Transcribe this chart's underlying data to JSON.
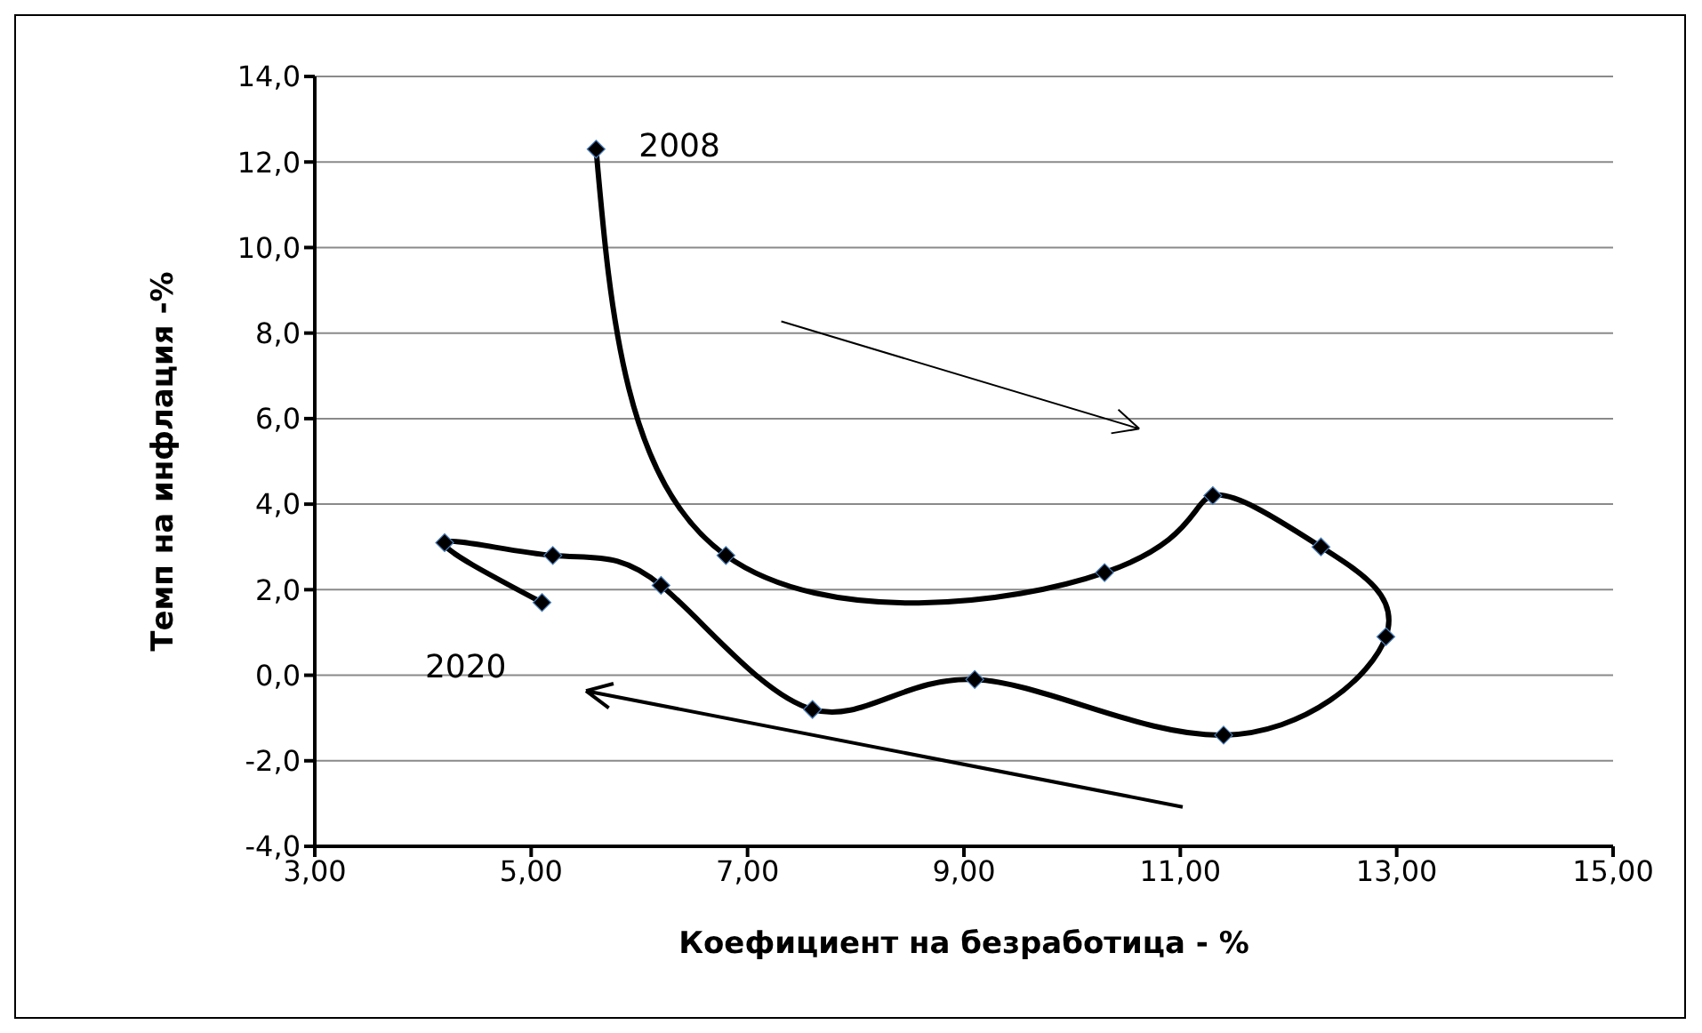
{
  "chart_data": {
    "type": "line",
    "xlabel": "Коефициент на безработица - %",
    "ylabel": "Темп на инфлация -%",
    "x": [
      5.6,
      6.8,
      10.3,
      11.3,
      12.3,
      12.9,
      11.4,
      9.1,
      7.6,
      6.2,
      5.2,
      4.2,
      5.1
    ],
    "series": [
      {
        "color": "#000000",
        "values": [
          12.3,
          2.8,
          2.4,
          4.2,
          3.0,
          0.9,
          -1.4,
          -0.1,
          -0.8,
          2.1,
          2.8,
          3.1,
          1.7
        ]
      }
    ],
    "xlim": [
      3,
      15
    ],
    "xticks": [
      {
        "value": 3,
        "label": "3,00"
      },
      {
        "value": 5,
        "label": "5,00"
      },
      {
        "value": 7,
        "label": "7,00"
      },
      {
        "value": 9,
        "label": "9,00"
      },
      {
        "value": 11,
        "label": "11,00"
      },
      {
        "value": 13,
        "label": "13,00"
      },
      {
        "value": 15,
        "label": "15,00"
      }
    ],
    "ylim": [
      -4,
      14
    ],
    "yticks": [
      {
        "value": -4,
        "label": "-4,0"
      },
      {
        "value": -2,
        "label": "-2,0"
      },
      {
        "value": 0,
        "label": "0,0"
      },
      {
        "value": 2,
        "label": "2,0"
      },
      {
        "value": 4,
        "label": "4,0"
      },
      {
        "value": 6,
        "label": "6,0"
      },
      {
        "value": 8,
        "label": "8,0"
      },
      {
        "value": 10,
        "label": "10,0"
      },
      {
        "value": 12,
        "label": "12,0"
      },
      {
        "value": 14,
        "label": "14,0"
      }
    ],
    "annotations": [
      {
        "text": "2008",
        "x": 5.6,
        "y": 12.3
      },
      {
        "text": "2020",
        "x": 5.1,
        "y": 1.7
      }
    ],
    "grid": "y",
    "marker": "diamond",
    "line_style": "solid"
  }
}
